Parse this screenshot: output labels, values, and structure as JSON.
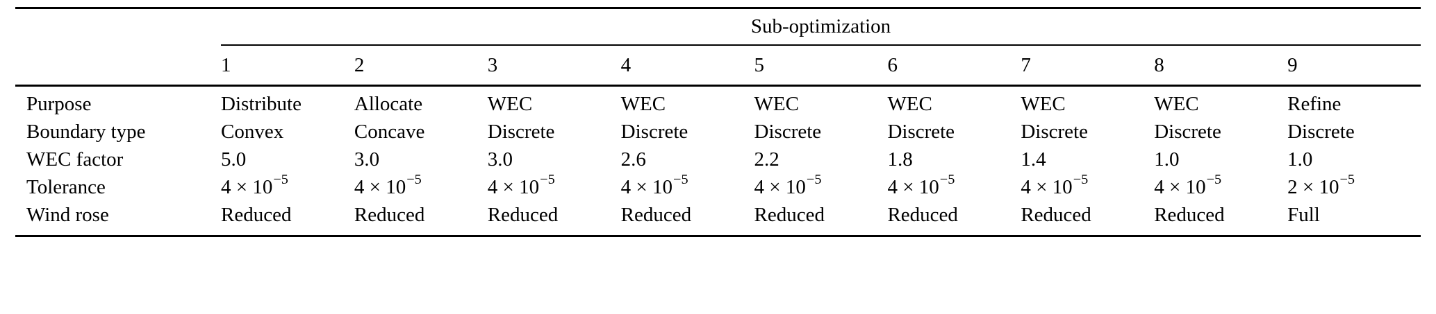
{
  "table": {
    "group_header": "Sub-optimization",
    "columns": [
      "1",
      "2",
      "3",
      "4",
      "5",
      "6",
      "7",
      "8",
      "9"
    ],
    "rows": [
      {
        "label": "Purpose",
        "values": [
          "Distribute",
          "Allocate",
          "WEC",
          "WEC",
          "WEC",
          "WEC",
          "WEC",
          "WEC",
          "Refine"
        ]
      },
      {
        "label": "Boundary type",
        "values": [
          "Convex",
          "Concave",
          "Discrete",
          "Discrete",
          "Discrete",
          "Discrete",
          "Discrete",
          "Discrete",
          "Discrete"
        ]
      },
      {
        "label": "WEC factor",
        "values": [
          "5.0",
          "3.0",
          "3.0",
          "2.6",
          "2.2",
          "1.8",
          "1.4",
          "1.0",
          "1.0"
        ]
      },
      {
        "label": "Tolerance",
        "values": [
          {
            "base": "4 × 10",
            "exp": "−5"
          },
          {
            "base": "4 × 10",
            "exp": "−5"
          },
          {
            "base": "4 × 10",
            "exp": "−5"
          },
          {
            "base": "4 × 10",
            "exp": "−5"
          },
          {
            "base": "4 × 10",
            "exp": "−5"
          },
          {
            "base": "4 × 10",
            "exp": "−5"
          },
          {
            "base": "4 × 10",
            "exp": "−5"
          },
          {
            "base": "4 × 10",
            "exp": "−5"
          },
          {
            "base": "2 × 10",
            "exp": "−5"
          }
        ]
      },
      {
        "label": "Wind rose",
        "values": [
          "Reduced",
          "Reduced",
          "Reduced",
          "Reduced",
          "Reduced",
          "Reduced",
          "Reduced",
          "Reduced",
          "Full"
        ]
      }
    ]
  }
}
